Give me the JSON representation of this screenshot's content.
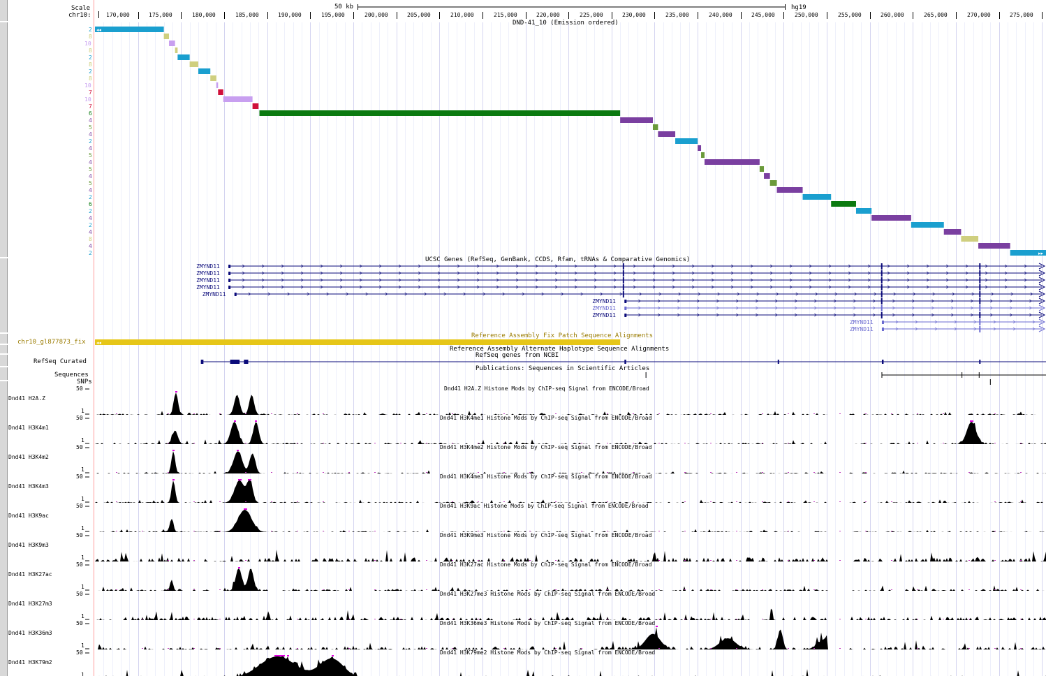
{
  "scale": {
    "label": "Scale",
    "bar_label": "50 kb",
    "assembly": "hg19",
    "chrom_label": "chr10:",
    "ticks": [
      "170,000",
      "175,000",
      "180,000",
      "185,000",
      "190,000",
      "195,000",
      "200,000",
      "205,000",
      "210,000",
      "215,000",
      "220,000",
      "225,000",
      "230,000",
      "235,000",
      "240,000",
      "245,000",
      "250,000",
      "255,000",
      "260,000",
      "265,000",
      "270,000",
      "275,000"
    ]
  },
  "chromhmm": {
    "title": "DND-41_10 (Emission ordered)",
    "colors": {
      "2": "#1a9fcf",
      "4": "#7a3fa0",
      "5": "#6a9a3a",
      "6": "#0b7a10",
      "7": "#d0103a",
      "8": "#cfcf7f",
      "10": "#c89ff0"
    },
    "segments": [
      {
        "state": "2",
        "start": 165000,
        "end": 173000,
        "arrow": "left"
      },
      {
        "state": "8",
        "start": 173000,
        "end": 173600
      },
      {
        "state": "10",
        "start": 173600,
        "end": 174300
      },
      {
        "state": "8",
        "start": 174300,
        "end": 174600
      },
      {
        "state": "2",
        "start": 174600,
        "end": 176000
      },
      {
        "state": "8",
        "start": 176000,
        "end": 177000
      },
      {
        "state": "2",
        "start": 177000,
        "end": 178400
      },
      {
        "state": "8",
        "start": 178400,
        "end": 179100
      },
      {
        "state": "10",
        "start": 179100,
        "end": 179300
      },
      {
        "state": "7",
        "start": 179300,
        "end": 179900
      },
      {
        "state": "10",
        "start": 179900,
        "end": 183300
      },
      {
        "state": "7",
        "start": 183300,
        "end": 184000
      },
      {
        "state": "6",
        "start": 184100,
        "end": 226000
      },
      {
        "state": "4",
        "start": 226000,
        "end": 229800
      },
      {
        "state": "5",
        "start": 229800,
        "end": 230400
      },
      {
        "state": "4",
        "start": 230400,
        "end": 232400
      },
      {
        "state": "2",
        "start": 232400,
        "end": 235000
      },
      {
        "state": "4",
        "start": 235000,
        "end": 235400
      },
      {
        "state": "5",
        "start": 235400,
        "end": 235800
      },
      {
        "state": "4",
        "start": 235800,
        "end": 242200
      },
      {
        "state": "5",
        "start": 242200,
        "end": 242700
      },
      {
        "state": "4",
        "start": 242700,
        "end": 243400
      },
      {
        "state": "5",
        "start": 243400,
        "end": 244200
      },
      {
        "state": "4",
        "start": 244200,
        "end": 247200
      },
      {
        "state": "2",
        "start": 247200,
        "end": 250500
      },
      {
        "state": "6",
        "start": 250500,
        "end": 253400
      },
      {
        "state": "2",
        "start": 253400,
        "end": 255200
      },
      {
        "state": "4",
        "start": 255200,
        "end": 259800
      },
      {
        "state": "2",
        "start": 259800,
        "end": 263600
      },
      {
        "state": "4",
        "start": 263600,
        "end": 265600
      },
      {
        "state": "8",
        "start": 265600,
        "end": 267600
      },
      {
        "state": "4",
        "start": 267600,
        "end": 271300
      },
      {
        "state": "2",
        "start": 271300,
        "end": 276200,
        "arrow": "right"
      }
    ]
  },
  "genes": {
    "title": "UCSC Genes (RefSeq, GenBank, CCDS, Rfam, tRNAs & Comparative Genomics)",
    "rows": [
      {
        "label": "ZMYND11",
        "start": 180500,
        "color": "#0a0a7a"
      },
      {
        "label": "ZMYND11",
        "start": 180500,
        "color": "#0a0a7a"
      },
      {
        "label": "ZMYND11",
        "start": 180500,
        "color": "#0a0a7a"
      },
      {
        "label": "ZMYND11",
        "start": 180500,
        "color": "#0a0a7a"
      },
      {
        "label": "ZMYND11",
        "start": 181200,
        "color": "#0a0a7a"
      },
      {
        "label": "ZMYND11",
        "start": 226500,
        "color": "#0a0a7a"
      },
      {
        "label": "ZMYND11",
        "start": 226500,
        "color": "#6a6ad0"
      },
      {
        "label": "ZMYND11",
        "start": 226500,
        "color": "#0a0a7a"
      },
      {
        "label": "ZMYND11",
        "start": 256400,
        "color": "#6a6ad0"
      },
      {
        "label": "ZMYND11",
        "start": 256400,
        "color": "#6a6ad0"
      }
    ]
  },
  "fix_patch": {
    "title": "Reference Assembly Fix Patch Sequence Alignments",
    "label": "chr10_gl877873_fix",
    "color": "#e6c618"
  },
  "alt_haplotype": {
    "title": "Reference Assembly Alternate Haplotype Sequence Alignments"
  },
  "refseq": {
    "title": "RefSeq genes from NCBI",
    "label": "RefSeq Curated"
  },
  "publications": {
    "title": "Publications: Sequences in Scientific Articles",
    "label": "Sequences"
  },
  "snps": {
    "label": "SNPs"
  },
  "signal_tracks": [
    {
      "label": "Dnd41 H2A.Z",
      "title": "Dnd41 H2A.Z Histone Mods by ChIP-seq Signal from ENCODE/Broad",
      "max": "50",
      "min": "1",
      "peaks": [
        [
          174400,
          1.0,
          700
        ],
        [
          181500,
          0.9,
          900
        ],
        [
          183200,
          0.9,
          800
        ]
      ],
      "noise": 0.06
    },
    {
      "label": "Dnd41 H3K4m1",
      "title": "Dnd41 H3K4me1 Histone Mods by ChIP-seq Signal from ENCODE/Broad",
      "max": "50",
      "min": "1",
      "peaks": [
        [
          174300,
          0.6,
          900
        ],
        [
          181200,
          1.0,
          1200
        ],
        [
          183700,
          1.0,
          900
        ],
        [
          266800,
          1.0,
          1500
        ]
      ],
      "noise": 0.07
    },
    {
      "label": "Dnd41 H3K4m2",
      "title": "Dnd41 H3K4me2 Histone Mods by ChIP-seq Signal from ENCODE/Broad",
      "max": "50",
      "min": "1",
      "peaks": [
        [
          174100,
          1.0,
          600
        ],
        [
          181600,
          1.0,
          1400
        ],
        [
          183300,
          0.9,
          900
        ]
      ],
      "noise": 0.05
    },
    {
      "label": "Dnd41 H3K4m3",
      "title": "Dnd41 H3K4me3 Histone Mods by ChIP-seq Signal from ENCODE/Broad",
      "max": "50",
      "min": "1",
      "peaks": [
        [
          174100,
          1.0,
          600
        ],
        [
          181800,
          1.0,
          1600
        ],
        [
          183000,
          1.0,
          900
        ]
      ],
      "noise": 0.05
    },
    {
      "label": "Dnd41 H3K9ac",
      "title": "Dnd41 H3K9ac Histone Mods by ChIP-seq Signal from ENCODE/Broad",
      "max": "50",
      "min": "1",
      "peaks": [
        [
          173900,
          0.6,
          600
        ],
        [
          182400,
          1.0,
          2200
        ]
      ],
      "noise": 0.05
    },
    {
      "label": "Dnd41 H3K9m3",
      "title": "Dnd41 H3K9me3 Histone Mods by ChIP-seq Signal from ENCODE/Broad",
      "max": "50",
      "min": "1",
      "peaks": [
        [
          168600,
          0.4,
          300
        ],
        [
          230000,
          0.45,
          300
        ]
      ],
      "noise": 0.18
    },
    {
      "label": "Dnd41 H3K27ac",
      "title": "Dnd41 H3K27ac Histone Mods by ChIP-seq Signal from ENCODE/Broad",
      "max": "50",
      "min": "1",
      "peaks": [
        [
          173900,
          0.5,
          500
        ],
        [
          181700,
          1.0,
          1000
        ],
        [
          183100,
          1.0,
          900
        ]
      ],
      "noise": 0.08
    },
    {
      "label": "Dnd41 H3K27m3",
      "title": "Dnd41 H3K27me3 Histone Mods by ChIP-seq Signal from ENCODE/Broad",
      "max": "50",
      "min": "1",
      "peaks": [
        [
          185100,
          0.4,
          300
        ],
        [
          243600,
          0.45,
          300
        ]
      ],
      "noise": 0.16
    },
    {
      "label": "Dnd41 H3K36m3",
      "title": "Dnd41 H3K36me3 Histone Mods by ChIP-seq Signal from ENCODE/Broad",
      "max": "50",
      "min": "1",
      "peaks": [
        [
          229800,
          0.7,
          2400
        ],
        [
          238500,
          0.5,
          2600
        ],
        [
          244600,
          0.9,
          800
        ],
        [
          250000,
          0.5,
          2500
        ]
      ],
      "noise": 0.14
    },
    {
      "label": "Dnd41 H3K79m2",
      "title": "Dnd41 H3K79me2 Histone Mods by ChIP-seq Signal from ENCODE/Broad",
      "max": "50",
      "min": "1",
      "peaks": [
        [
          186200,
          1.0,
          6000
        ],
        [
          192500,
          0.9,
          4000
        ]
      ],
      "noise": 0.16
    }
  ]
}
